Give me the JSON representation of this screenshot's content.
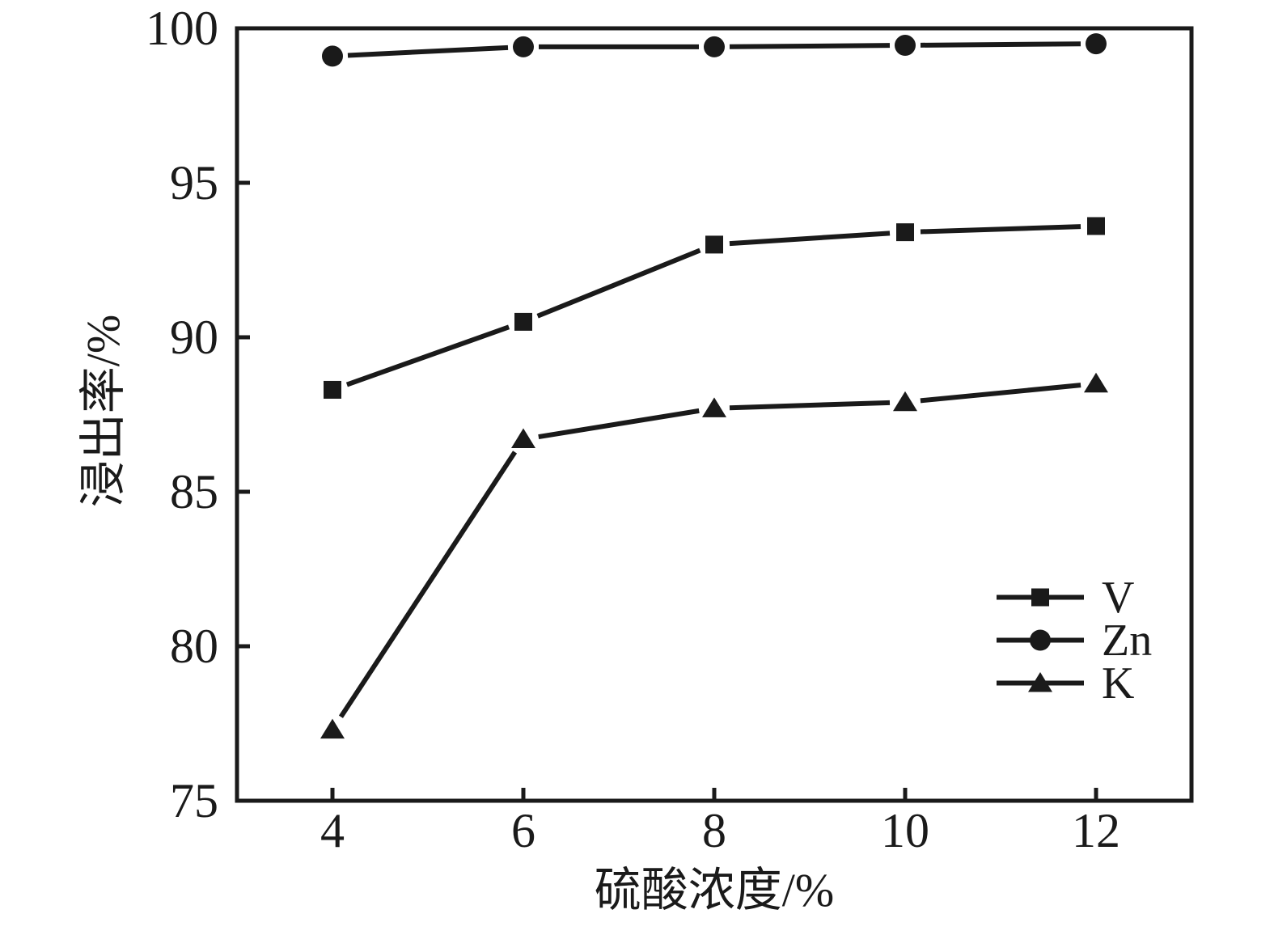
{
  "figure": {
    "background": "#ffffff",
    "ink_color": "#1a1a1a"
  },
  "chart_data": {
    "type": "line",
    "title": "",
    "xlabel": "硫酸浓度/%",
    "ylabel": "浸出率/%",
    "x": [
      4,
      6,
      8,
      10,
      12
    ],
    "series": [
      {
        "name": "V",
        "marker": "square",
        "values": [
          88.3,
          90.5,
          93.0,
          93.4,
          93.6
        ]
      },
      {
        "name": "Zn",
        "marker": "circle",
        "values": [
          99.1,
          99.4,
          99.4,
          99.45,
          99.5
        ]
      },
      {
        "name": "K",
        "marker": "triangle",
        "values": [
          77.3,
          86.7,
          87.7,
          87.9,
          88.5
        ]
      }
    ],
    "xlim": [
      3,
      13
    ],
    "ylim": [
      75,
      100
    ],
    "x_ticks": [
      4,
      6,
      8,
      10,
      12
    ],
    "y_ticks": [
      75,
      80,
      85,
      90,
      95,
      100
    ],
    "grid": false,
    "legend_position": "lower right",
    "line_color": "#1a1a1a"
  }
}
